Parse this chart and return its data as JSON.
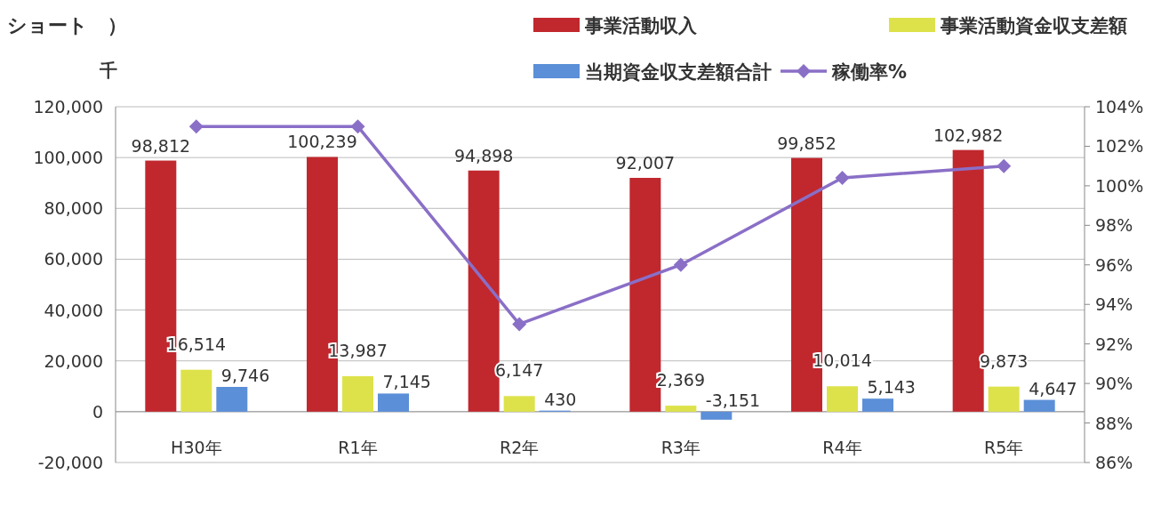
{
  "chart_data": {
    "type": "bar",
    "title": "ショート　）",
    "ylabel": "千",
    "categories": [
      "H30年",
      "R1年",
      "R2年",
      "R3年",
      "R4年",
      "R5年"
    ],
    "series": [
      {
        "name": "事業活動収入",
        "color": "#c0282e",
        "values": [
          98812,
          100239,
          94898,
          92007,
          99852,
          102982
        ]
      },
      {
        "name": "事業活動資金収支差額",
        "color": "#dde24a",
        "values": [
          16514,
          13987,
          6147,
          2369,
          10014,
          9873
        ]
      },
      {
        "name": "当期資金収支差額合計",
        "color": "#5b8fd8",
        "values": [
          9746,
          7145,
          430,
          -3151,
          5143,
          4647
        ]
      },
      {
        "name": "稼働率%",
        "type": "line",
        "axis": "y2",
        "color": "#8a6fc7",
        "values": [
          103,
          103,
          93,
          96,
          100.4,
          101
        ]
      }
    ],
    "ylim": [
      -20000,
      120000
    ],
    "yticks": [
      {
        "value": -20000,
        "label": "-20,000"
      },
      {
        "value": 0,
        "label": "0"
      },
      {
        "value": 20000,
        "label": "20,000"
      },
      {
        "value": 40000,
        "label": "40,000"
      },
      {
        "value": 60000,
        "label": "60,000"
      },
      {
        "value": 80000,
        "label": "80,000"
      },
      {
        "value": 100000,
        "label": "100,000"
      },
      {
        "value": 120000,
        "label": "120,000"
      }
    ],
    "y2lim": [
      86,
      104
    ],
    "y2ticks": [
      {
        "value": 86,
        "label": "86%"
      },
      {
        "value": 88,
        "label": "88%"
      },
      {
        "value": 90,
        "label": "90%"
      },
      {
        "value": 92,
        "label": "92%"
      },
      {
        "value": 94,
        "label": "94%"
      },
      {
        "value": 96,
        "label": "96%"
      },
      {
        "value": 98,
        "label": "98%"
      },
      {
        "value": 100,
        "label": "100%"
      },
      {
        "value": 102,
        "label": "102%"
      },
      {
        "value": 104,
        "label": "104%"
      }
    ],
    "value_labels": [
      [
        "98,812",
        "100,239",
        "94,898",
        "92,007",
        "99,852",
        "102,982"
      ],
      [
        "16,514",
        "13,987",
        "6,147",
        "2,369",
        "10,014",
        "9,873"
      ],
      [
        "9,746",
        "7,145",
        "430",
        "-3,151",
        "5,143",
        "4,647"
      ],
      [
        null,
        null,
        null,
        null,
        null,
        null
      ]
    ],
    "grid": "y",
    "legend": "top right",
    "marker": "diamond"
  }
}
